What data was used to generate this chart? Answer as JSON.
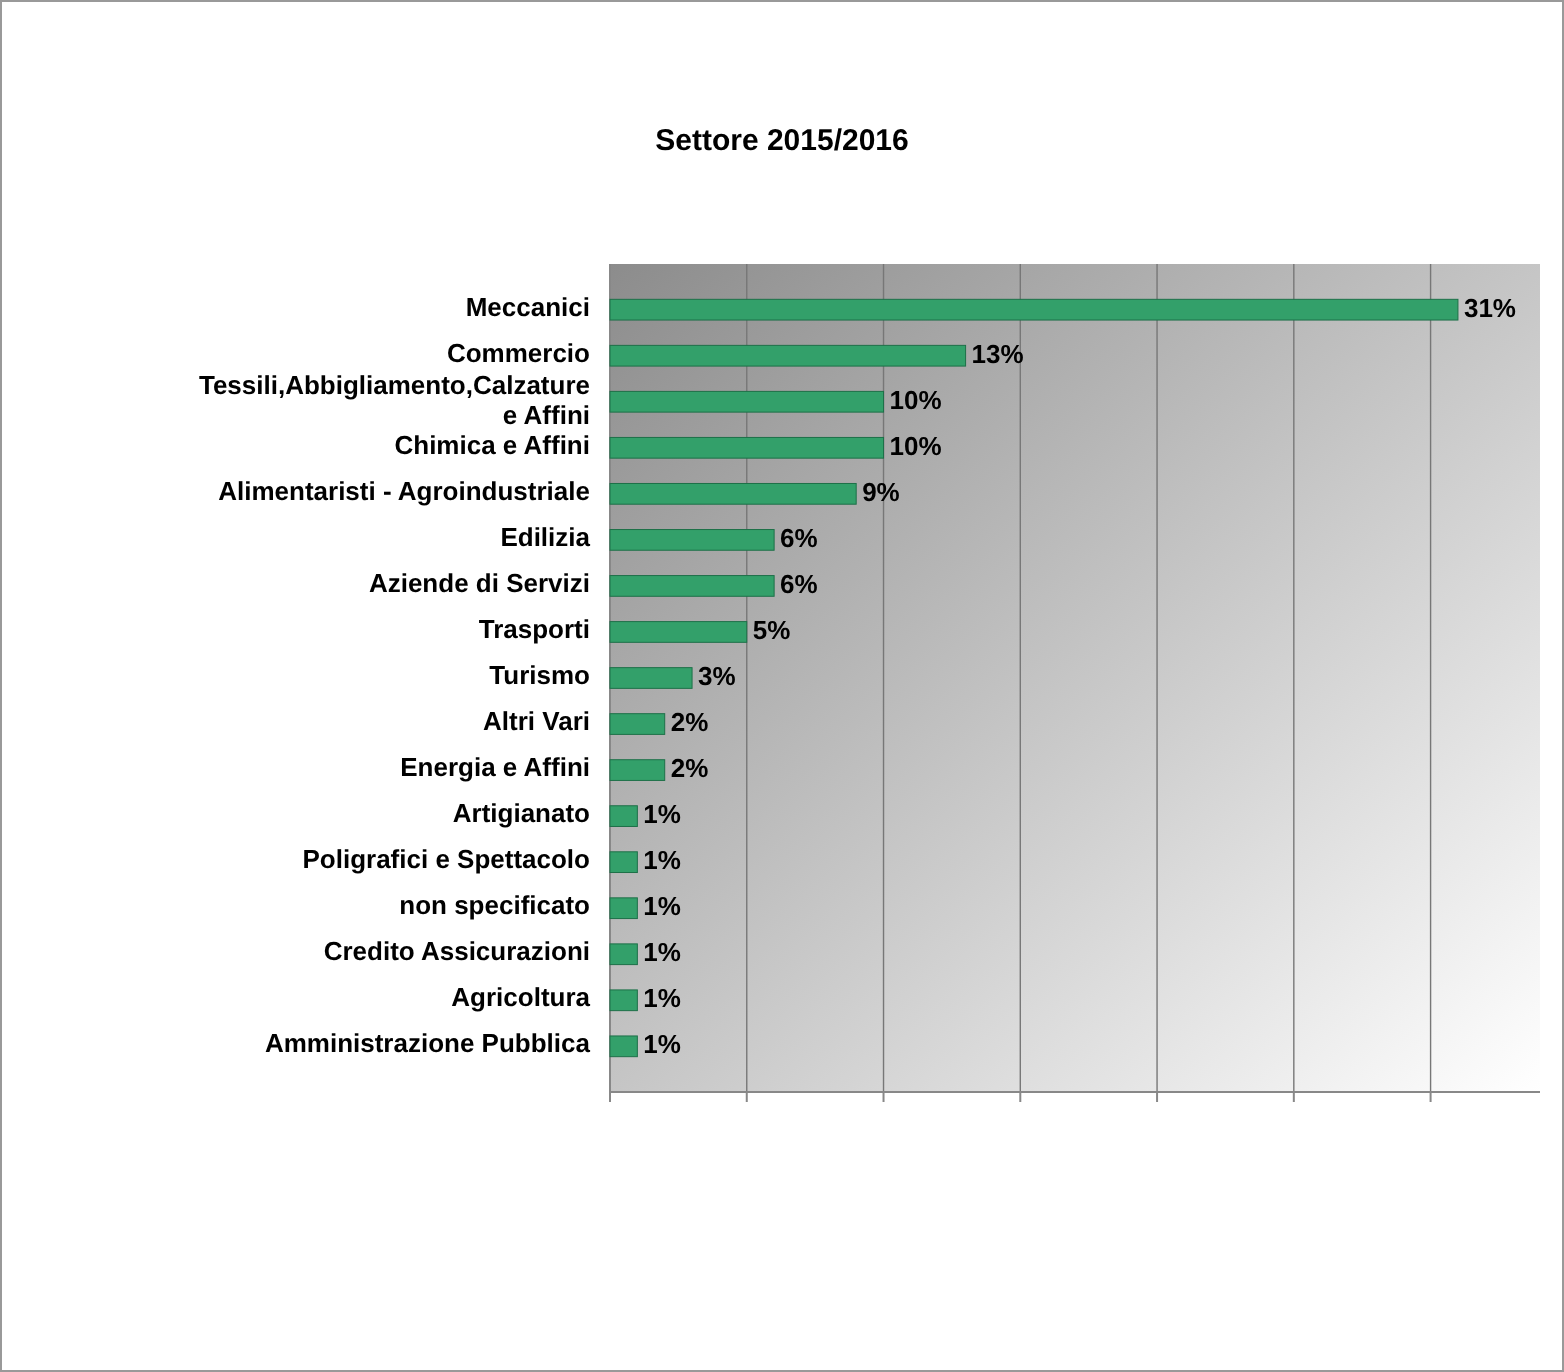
{
  "chart_data": {
    "type": "bar",
    "orientation": "horizontal",
    "title": "Settore 2015/2016",
    "categories": [
      "Meccanici",
      "Commercio",
      "Tessili,Abbigliamento,Calzature e Affini",
      "Chimica e Affini",
      "Alimentaristi - Agroindustriale",
      "Edilizia",
      "Aziende di Servizi",
      "Trasporti",
      "Turismo",
      "Altri Vari",
      "Energia e Affini",
      "Artigianato",
      "Poligrafici e Spettacolo",
      "non specificato",
      "Credito Assicurazioni",
      "Agricoltura",
      "Amministrazione Pubblica"
    ],
    "values": [
      31,
      13,
      10,
      10,
      9,
      6,
      6,
      5,
      3,
      2,
      2,
      1,
      1,
      1,
      1,
      1,
      1
    ],
    "value_labels": [
      "31%",
      "13%",
      "10%",
      "10%",
      "9%",
      "6%",
      "6%",
      "5%",
      "3%",
      "2%",
      "2%",
      "1%",
      "1%",
      "1%",
      "1%",
      "1%",
      "1%"
    ],
    "color": "#33a06a",
    "xlim": [
      0,
      34
    ],
    "xticks": [
      {
        "value": 0,
        "label": null
      },
      {
        "value": 5,
        "label": null
      },
      {
        "value": 10,
        "label": null
      },
      {
        "value": 15,
        "label": null
      },
      {
        "value": 20,
        "label": null
      },
      {
        "value": 25,
        "label": null
      },
      {
        "value": 30,
        "label": null
      }
    ],
    "grid": "x"
  }
}
